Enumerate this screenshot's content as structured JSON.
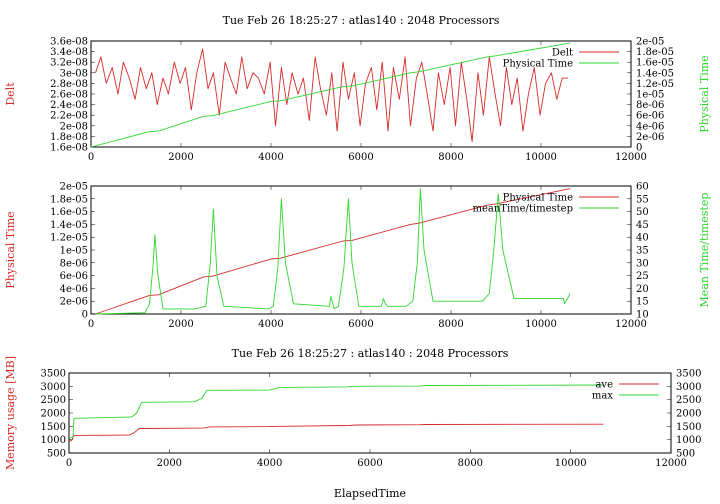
{
  "colors": {
    "red": "#d62a2a",
    "green": "#2fd62f",
    "frame": "#000000"
  },
  "chart_data": [
    {
      "type": "line",
      "title": "Tue Feb 26 18:25:27 : atlas140 : 2048 Processors",
      "xlabel": "",
      "xlim": [
        0,
        12000
      ],
      "x_ticks": [
        "0",
        "2000",
        "4000",
        "6000",
        "8000",
        "10000",
        "12000"
      ],
      "ylabel_left": "Delt",
      "ylim_left": [
        1.6e-08,
        3.6e-08
      ],
      "y_ticks_left": [
        "1.6e-08",
        "1.8e-08",
        "2e-08",
        "2.2e-08",
        "2.4e-08",
        "2.6e-08",
        "2.8e-08",
        "3e-08",
        "3.2e-08",
        "3.4e-08",
        "3.6e-08"
      ],
      "ylabel_right": "Physical Time",
      "ylim_right": [
        0,
        2e-05
      ],
      "y_ticks_right": [
        "0",
        "2e-06",
        "4e-06",
        "6e-06",
        "8e-06",
        "1e-05",
        "1.2e-05",
        "1.4e-05",
        "1.6e-05",
        "1.8e-05",
        "2e-05"
      ],
      "legend_position": "top-right",
      "series": [
        {
          "name": "Delt",
          "axis": "left",
          "color": "#d62a2a",
          "x": [
            100,
            220,
            340,
            470,
            600,
            720,
            850,
            980,
            1100,
            1230,
            1350,
            1470,
            1600,
            1720,
            1850,
            1980,
            2100,
            2230,
            2350,
            2480,
            2600,
            2720,
            2850,
            2980,
            3100,
            3230,
            3350,
            3470,
            3600,
            3720,
            3850,
            3980,
            4100,
            4230,
            4350,
            4470,
            4600,
            4720,
            4850,
            4980,
            5100,
            5230,
            5350,
            5470,
            5600,
            5720,
            5850,
            5980,
            6100,
            6230,
            6350,
            6470,
            6600,
            6720,
            6850,
            6980,
            7100,
            7230,
            7350,
            7470,
            7600,
            7720,
            7850,
            7980,
            8100,
            8230,
            8350,
            8470,
            8600,
            8720,
            8850,
            8980,
            9100,
            9230,
            9350,
            9470,
            9600,
            9720,
            9850,
            9980,
            10100,
            10230,
            10350,
            10470,
            10600
          ],
          "y": [
            3e-08,
            3.3e-08,
            2.8e-08,
            3.1e-08,
            2.6e-08,
            3.2e-08,
            2.9e-08,
            2.5e-08,
            3.1e-08,
            2.7e-08,
            3e-08,
            2.4e-08,
            2.9e-08,
            2.6e-08,
            3.2e-08,
            2.8e-08,
            3.1e-08,
            2.3e-08,
            3e-08,
            3.45e-08,
            2.7e-08,
            3e-08,
            2.2e-08,
            3.2e-08,
            2.9e-08,
            2.6e-08,
            3.3e-08,
            2.7e-08,
            3e-08,
            2.9e-08,
            2.6e-08,
            3.2e-08,
            2e-08,
            3.1e-08,
            2.4e-08,
            3e-08,
            2.6e-08,
            2.9e-08,
            2.1e-08,
            3.3e-08,
            2.7e-08,
            2.2e-08,
            3e-08,
            1.9e-08,
            3.2e-08,
            2.5e-08,
            3e-08,
            2e-08,
            2.8e-08,
            3.1e-08,
            2.3e-08,
            3.2e-08,
            1.9e-08,
            3.1e-08,
            2.5e-08,
            3.3e-08,
            2e-08,
            2.9e-08,
            3.2e-08,
            2.6e-08,
            1.9e-08,
            3e-08,
            2.4e-08,
            3.1e-08,
            2e-08,
            3.2e-08,
            2.5e-08,
            1.7e-08,
            3e-08,
            2.2e-08,
            3.3e-08,
            2.6e-08,
            2e-08,
            3.1e-08,
            2.4e-08,
            2.9e-08,
            1.9e-08,
            2.6e-08,
            3.1e-08,
            2.2e-08,
            2.8e-08,
            3e-08,
            2.5e-08,
            2.9e-08,
            2.9e-08
          ]
        },
        {
          "name": "Physical Time",
          "axis": "right",
          "color": "#2fd62f",
          "x": [
            0,
            1300,
            1500,
            2500,
            2700,
            4000,
            4200,
            5600,
            5800,
            7100,
            7300,
            8800,
            9000,
            10650
          ],
          "y": [
            0,
            2.9e-06,
            3e-06,
            5.8e-06,
            5.9e-06,
            8.6e-06,
            8.7e-06,
            1.14e-05,
            1.15e-05,
            1.4e-05,
            1.42e-05,
            1.7e-05,
            1.72e-05,
            1.96e-05
          ]
        }
      ]
    },
    {
      "type": "line",
      "title": "",
      "xlabel": "",
      "xlim": [
        0,
        12000
      ],
      "x_ticks": [
        "0",
        "2000",
        "4000",
        "6000",
        "8000",
        "10000",
        "12000"
      ],
      "ylabel_left": "Physical Time",
      "ylim_left": [
        0,
        2e-05
      ],
      "y_ticks_left": [
        "0",
        "2e-06",
        "4e-06",
        "6e-06",
        "8e-06",
        "1e-05",
        "1.2e-05",
        "1.4e-05",
        "1.6e-05",
        "1.8e-05",
        "2e-05"
      ],
      "ylabel_right": "Mean Time/timestep",
      "ylim_right": [
        10,
        60
      ],
      "y_ticks_right": [
        "10",
        "15",
        "20",
        "25",
        "30",
        "35",
        "40",
        "45",
        "50",
        "55",
        "60"
      ],
      "legend_position": "top-right",
      "series": [
        {
          "name": "Physical Time",
          "axis": "left",
          "color": "#d62a2a",
          "x": [
            100,
            1300,
            1500,
            2500,
            2700,
            4000,
            4200,
            5600,
            5800,
            7100,
            7300,
            8800,
            9000,
            10650
          ],
          "y": [
            0,
            2.9e-06,
            3e-06,
            5.8e-06,
            5.9e-06,
            8.6e-06,
            8.7e-06,
            1.14e-05,
            1.15e-05,
            1.4e-05,
            1.42e-05,
            1.7e-05,
            1.72e-05,
            1.96e-05
          ]
        },
        {
          "name": "meanTime/timestep",
          "axis": "right",
          "color": "#2fd62f",
          "x": [
            100,
            1200,
            1300,
            1380,
            1420,
            1480,
            1600,
            2300,
            2550,
            2650,
            2720,
            2800,
            2950,
            3950,
            4050,
            4150,
            4230,
            4320,
            4500,
            5300,
            5330,
            5400,
            5500,
            5620,
            5720,
            5800,
            5950,
            6450,
            6500,
            6540,
            6600,
            7000,
            7150,
            7250,
            7320,
            7400,
            7600,
            8700,
            8850,
            8950,
            9050,
            9150,
            9400,
            10500,
            10520,
            10620,
            10640
          ],
          "y": [
            10,
            10.5,
            14,
            29,
            41,
            26,
            12,
            12,
            13,
            30,
            51,
            25,
            13,
            12,
            13,
            28,
            55,
            30,
            14,
            13,
            17,
            12,
            13,
            28,
            55,
            30,
            13,
            13,
            16,
            14,
            13,
            13,
            15,
            30,
            59,
            35,
            15,
            15,
            18,
            35,
            57,
            35,
            16,
            16,
            14,
            17,
            18
          ]
        }
      ]
    },
    {
      "type": "line",
      "title": "Tue Feb 26 18:25:27 : atlas140 : 2048 Processors",
      "xlabel": "ElapsedTime",
      "xlim": [
        0,
        12000
      ],
      "x_ticks": [
        "0",
        "2000",
        "4000",
        "6000",
        "8000",
        "10000",
        "12000"
      ],
      "ylabel_left": "Memory usage [MB]",
      "ylim_left": [
        500,
        3500
      ],
      "y_ticks_left": [
        "500",
        "1000",
        "1500",
        "2000",
        "2500",
        "3000",
        "3500"
      ],
      "ylabel_right": "",
      "ylim_right": [
        500,
        3500
      ],
      "y_ticks_right": [
        "500",
        "1000",
        "1500",
        "2000",
        "2500",
        "3000",
        "3500"
      ],
      "legend_position": "top-right",
      "series": [
        {
          "name": "ave",
          "axis": "left",
          "color": "#d62a2a",
          "x": [
            0,
            50,
            100,
            1200,
            1300,
            1400,
            2400,
            2700,
            2800,
            4000,
            4200,
            5600,
            5700,
            7000,
            7100,
            10650
          ],
          "y": [
            950,
            960,
            1160,
            1170,
            1260,
            1420,
            1430,
            1440,
            1480,
            1490,
            1500,
            1530,
            1550,
            1560,
            1570,
            1580
          ]
        },
        {
          "name": "max",
          "axis": "left",
          "color": "#2fd62f",
          "x": [
            0,
            80,
            100,
            1250,
            1350,
            1450,
            2500,
            2650,
            2750,
            4000,
            4200,
            5500,
            5700,
            7000,
            7100,
            10650
          ],
          "y": [
            1050,
            1100,
            1800,
            1850,
            2000,
            2400,
            2420,
            2560,
            2850,
            2860,
            2960,
            2980,
            3000,
            3010,
            3030,
            3050
          ]
        }
      ]
    }
  ]
}
